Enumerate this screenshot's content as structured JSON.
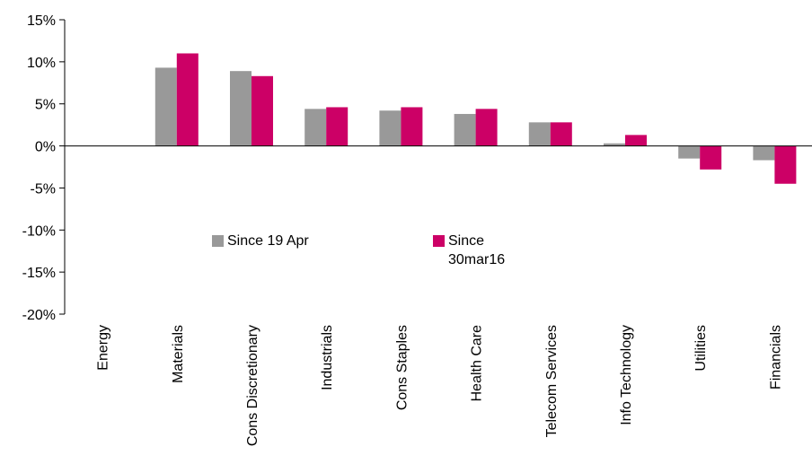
{
  "chart_data": {
    "type": "bar",
    "categories": [
      "Energy",
      "Materials",
      "Cons Discretionary",
      "Industrials",
      "Cons Staples",
      "Health Care",
      "Telecom Services",
      "Info Technology",
      "Utilities",
      "Financials"
    ],
    "series": [
      {
        "name": "Since 19 Apr",
        "color": "#999999",
        "values": [
          0,
          9.3,
          8.9,
          4.4,
          4.2,
          3.8,
          2.8,
          0.3,
          -1.5,
          -1.7
        ]
      },
      {
        "name": "Since 30mar16",
        "color": "#cc0066",
        "values": [
          0,
          11.0,
          8.3,
          4.6,
          4.6,
          4.4,
          2.8,
          1.3,
          -2.8,
          -4.5
        ]
      }
    ],
    "ylim": [
      -20,
      15
    ],
    "yticks": [
      {
        "value": -20,
        "label": "-20%"
      },
      {
        "value": -15,
        "label": "-15%"
      },
      {
        "value": -10,
        "label": "-10%"
      },
      {
        "value": -5,
        "label": "-5%"
      },
      {
        "value": 0,
        "label": "0%"
      },
      {
        "value": 5,
        "label": "5%"
      },
      {
        "value": 10,
        "label": "10%"
      },
      {
        "value": 15,
        "label": "15%"
      }
    ],
    "grid": false
  }
}
